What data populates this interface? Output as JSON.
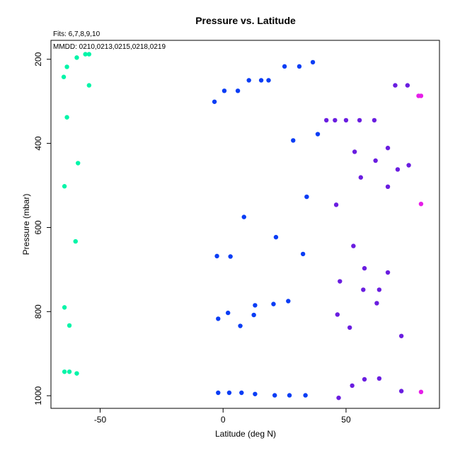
{
  "chart_data": {
    "type": "scatter",
    "title": "Pressure vs. Latitude",
    "xlabel": "Latitude (deg N)",
    "ylabel": "Pressure (mbar)",
    "annotations": [
      "Fits: 6,7,8,9,10",
      "MMDD: 0210,0213,0215,0218,0219"
    ],
    "xlim": [
      -70,
      88
    ],
    "ylim": [
      1030,
      155
    ],
    "y_reversed": true,
    "xticks": [
      -50,
      0,
      50
    ],
    "yticks": [
      200,
      400,
      600,
      800,
      1000
    ],
    "grid": false,
    "legend": "none",
    "series": [
      {
        "color": "#00f5a8",
        "points": [
          [
            -56,
            188
          ],
          [
            -54.5,
            188
          ],
          [
            -59.5,
            196
          ],
          [
            -63.5,
            218
          ],
          [
            -64.8,
            242
          ],
          [
            -54.5,
            262
          ],
          [
            -63.5,
            338
          ],
          [
            -59,
            447
          ],
          [
            -64.5,
            502
          ],
          [
            -60,
            633
          ],
          [
            -64.5,
            790
          ],
          [
            -62.5,
            833
          ],
          [
            -64.5,
            943
          ],
          [
            -62.5,
            943
          ],
          [
            -59.5,
            947
          ]
        ]
      },
      {
        "color": "#0a3df5",
        "points": [
          [
            36.5,
            207
          ],
          [
            31,
            217
          ],
          [
            25,
            217
          ],
          [
            10.5,
            250
          ],
          [
            15.5,
            250
          ],
          [
            18.5,
            250
          ],
          [
            0.5,
            275
          ],
          [
            6,
            275
          ],
          [
            -3.5,
            301
          ],
          [
            38.5,
            378
          ],
          [
            28.5,
            393
          ],
          [
            34,
            527
          ],
          [
            8.5,
            575
          ],
          [
            21.5,
            623
          ],
          [
            -2.5,
            668
          ],
          [
            3,
            669
          ],
          [
            32.5,
            663
          ],
          [
            26.5,
            775
          ],
          [
            20.5,
            782
          ],
          [
            13,
            785
          ],
          [
            2,
            803
          ],
          [
            12.5,
            808
          ],
          [
            -2,
            817
          ],
          [
            7,
            834
          ],
          [
            -2,
            993
          ],
          [
            2.5,
            993
          ],
          [
            7.5,
            993
          ],
          [
            13,
            996
          ],
          [
            21,
            999
          ],
          [
            27,
            999
          ],
          [
            33.5,
            999
          ]
        ]
      },
      {
        "color": "#6a1de0",
        "points": [
          [
            70,
            262
          ],
          [
            75,
            262
          ],
          [
            42,
            345
          ],
          [
            45.5,
            345
          ],
          [
            50,
            345
          ],
          [
            55.5,
            345
          ],
          [
            61.5,
            345
          ],
          [
            67,
            411
          ],
          [
            53.5,
            420
          ],
          [
            62,
            441
          ],
          [
            75.5,
            452
          ],
          [
            71,
            462
          ],
          [
            56,
            481
          ],
          [
            67,
            503
          ],
          [
            46,
            546
          ],
          [
            53,
            644
          ],
          [
            57.5,
            697
          ],
          [
            67,
            707
          ],
          [
            47.5,
            728
          ],
          [
            57,
            748
          ],
          [
            63.5,
            748
          ],
          [
            62.5,
            780
          ],
          [
            46.5,
            807
          ],
          [
            51.5,
            838
          ],
          [
            72.5,
            858
          ],
          [
            63.5,
            959
          ],
          [
            57.5,
            961
          ],
          [
            52.5,
            976
          ],
          [
            72.5,
            989
          ],
          [
            47,
            1005
          ]
        ]
      },
      {
        "color": "#e61ee8",
        "points": [
          [
            79.5,
            287
          ],
          [
            80.5,
            287
          ],
          [
            80.5,
            544
          ],
          [
            80.5,
            991
          ]
        ]
      }
    ]
  }
}
